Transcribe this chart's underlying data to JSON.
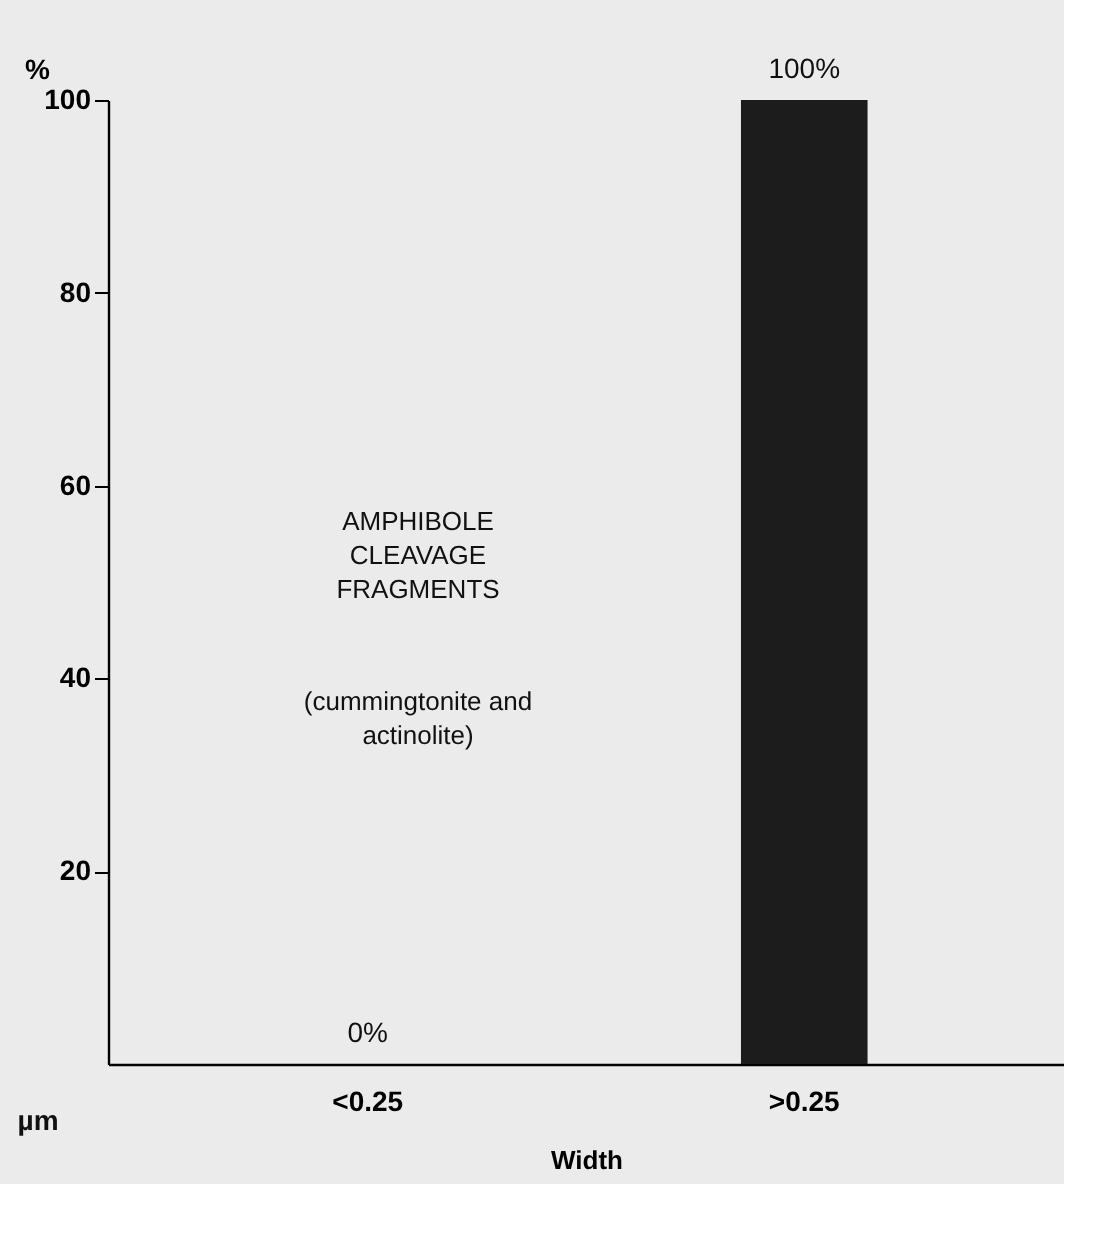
{
  "chart_data": {
    "type": "bar",
    "categories": [
      "<0.25",
      ">0.25"
    ],
    "values": [
      0,
      100
    ],
    "color": "#1c1c1c",
    "value_labels": [
      "0%",
      "100%"
    ],
    "ylabel": "%",
    "xlabel": "Width",
    "ylim": [
      0,
      100
    ],
    "yticks": [
      20,
      40,
      60,
      80,
      100
    ],
    "grid": false,
    "annotations": [
      "µm",
      "AMPHIBOLE\nCLEAVAGE\nFRAGMENTS",
      "(cummingtonite and\nactinolite)"
    ]
  }
}
